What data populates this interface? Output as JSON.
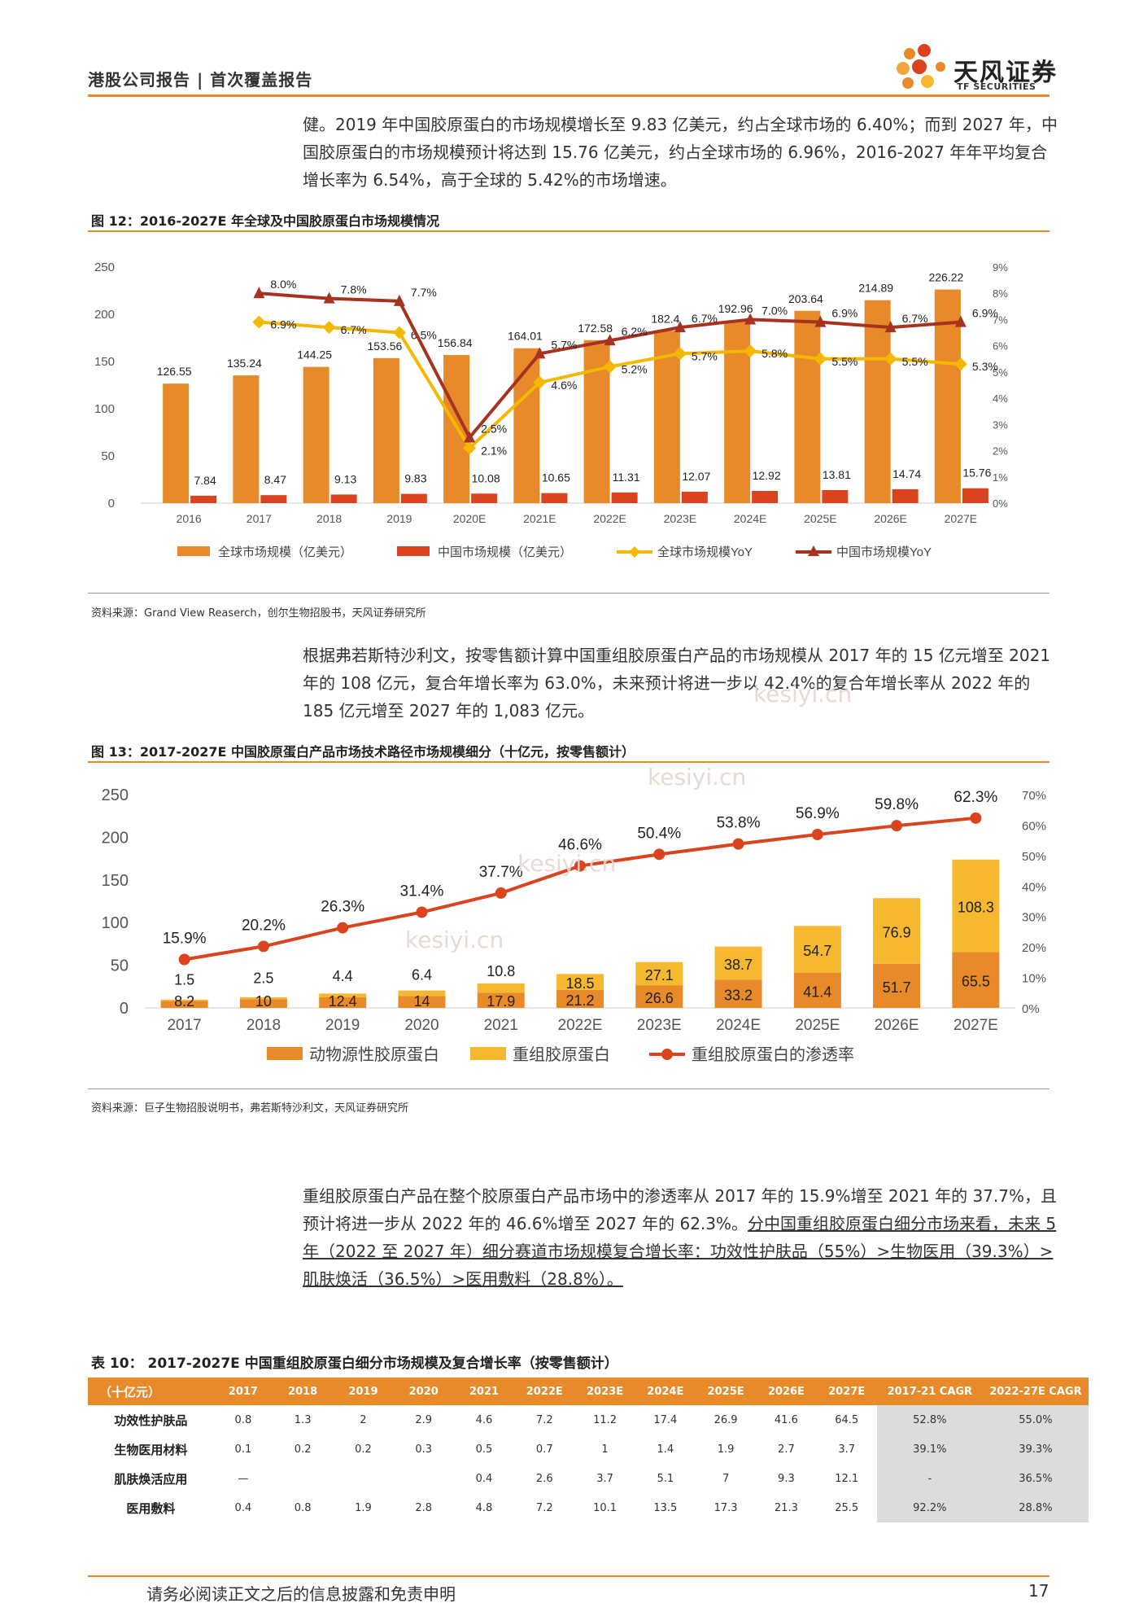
{
  "header": {
    "left": "港股公司报告 | 首次覆盖报告",
    "logo_cn": "天风证券",
    "logo_en": "TF SECURITIES"
  },
  "paragraphs": {
    "p1": "健。2019 年中国胶原蛋白的市场规模增长至 9.83 亿美元，约占全球市场的 6.40%；而到 2027 年，中国胶原蛋白的市场规模预计将达到 15.76 亿美元，约占全球市场的 6.96%，2016-2027 年年平均复合增长率为 6.54%，高于全球的 5.42%的市场增速。",
    "p2": "根据弗若斯特沙利文，按零售额计算中国重组胶原蛋白产品的市场规模从 2017 年的 15 亿元增至 2021 年的 108 亿元，复合年增长率为 63.0%，未来预计将进一步以 42.4%的复合年增长率从 2022 年的 185 亿元增至 2027 年的 1,083 亿元。",
    "p3_a": "重组胶原蛋白产品在整个胶原蛋白产品市场中的渗透率从 2017 年的 15.9%增至 2021 年的 37.7%，且预计将进一步从 2022 年的 46.6%增至 2027 年的 62.3%。",
    "p3_b": "分中国重组胶原蛋白细分市场来看，未来 5 年（2022 至 2027 年）细分赛道市场规模复合增长率：功效性护肤品（55%）>生物医用（39.3%）>肌肤焕活（36.5%）>医用敷料（28.8%）。"
  },
  "fig12": {
    "title": "图 12：2016-2027E 年全球及中国胶原蛋白市场规模情况",
    "source": "资料来源：Grand View Reaserch，创尔生物招股书，天风证券研究所"
  },
  "fig13": {
    "title": "图 13：2017-2027E 中国胶原蛋白产品市场技术路径市场规模细分（十亿元，按零售额计）",
    "source": "资料来源：巨子生物招股说明书，弗若斯特沙利文，天风证券研究所"
  },
  "watermark": [
    "kesiyi.cn",
    "kesiyi.cn",
    "kesiyi.cn",
    "kesiyi.cn"
  ],
  "table10": {
    "title": "表 10：   2017-2027E 中国重组胶原蛋白细分市场规模及复合增长率（按零售额计）",
    "headers": [
      "（十亿元）",
      "2017",
      "2018",
      "2019",
      "2020",
      "2021",
      "2022E",
      "2023E",
      "2024E",
      "2025E",
      "2026E",
      "2027E",
      "2017-21 CAGR",
      "2022-27E CAGR"
    ],
    "rows": [
      [
        "功效性护肤品",
        "0.8",
        "1.3",
        "2",
        "2.9",
        "4.6",
        "7.2",
        "11.2",
        "17.4",
        "26.9",
        "41.6",
        "64.5",
        "52.8%",
        "55.0%"
      ],
      [
        "生物医用材料",
        "0.1",
        "0.2",
        "0.2",
        "0.3",
        "0.5",
        "0.7",
        "1",
        "1.4",
        "1.9",
        "2.7",
        "3.7",
        "39.1%",
        "39.3%"
      ],
      [
        "肌肤焕活应用",
        "—",
        "",
        "",
        "",
        "0.4",
        "2.6",
        "3.7",
        "5.1",
        "7",
        "9.3",
        "12.1",
        "-",
        "36.5%"
      ],
      [
        "医用敷料",
        "0.4",
        "0.8",
        "1.9",
        "2.8",
        "4.8",
        "7.2",
        "10.1",
        "13.5",
        "17.3",
        "21.3",
        "25.5",
        "92.2%",
        "28.8%"
      ]
    ]
  },
  "footer": {
    "text": "请务必阅读正文之后的信息披露和免责申明",
    "page": "17"
  },
  "chart_data": [
    {
      "type": "bar",
      "title": "图 12：2016-2027E 年全球及中国胶原蛋白市场规模情况",
      "categories": [
        "2016",
        "2017",
        "2018",
        "2019",
        "2020E",
        "2021E",
        "2022E",
        "2023E",
        "2024E",
        "2025E",
        "2026E",
        "2027E"
      ],
      "ylim": [
        0,
        250
      ],
      "ylim_right": [
        0,
        9
      ],
      "y_ticks": [
        "0",
        "50",
        "100",
        "150",
        "200",
        "250"
      ],
      "y2_ticks": [
        "0%",
        "1%",
        "2%",
        "3%",
        "4%",
        "5%",
        "6%",
        "7%",
        "8%",
        "9%"
      ],
      "series": [
        {
          "name": "全球市场规模（亿美元）",
          "kind": "bar",
          "color": "#e8892a",
          "values": [
            126.55,
            135.24,
            144.25,
            153.56,
            156.84,
            164.01,
            172.58,
            182.4,
            192.96,
            203.64,
            214.89,
            226.22
          ],
          "labels": [
            "126.55",
            "135.24",
            "144.25",
            "153.56",
            "156.84",
            "164.01",
            "172.58",
            "182.4",
            "192.96",
            "203.64",
            "214.89",
            "226.22"
          ]
        },
        {
          "name": "中国市场规模（亿美元）",
          "kind": "bar",
          "color": "#d9431e",
          "values": [
            7.84,
            8.47,
            9.13,
            9.83,
            10.08,
            10.65,
            11.31,
            12.07,
            12.92,
            13.81,
            14.74,
            15.76
          ],
          "labels": [
            "7.84",
            "8.47",
            "9.13",
            "9.83",
            "10.08",
            "10.65",
            "11.31",
            "12.07",
            "12.92",
            "13.81",
            "14.74",
            "15.76"
          ]
        },
        {
          "name": "全球市场规模YoY",
          "kind": "line",
          "axis": "right",
          "color": "#f5b800",
          "marker": "diamond",
          "values": [
            null,
            6.9,
            6.7,
            6.5,
            2.1,
            4.6,
            5.2,
            5.7,
            5.8,
            5.5,
            5.5,
            5.3
          ],
          "labels": [
            "",
            "6.9%",
            "6.7%",
            "6.5%",
            "2.1%",
            "4.6%",
            "5.2%",
            "5.7%",
            "5.8%",
            "5.5%",
            "5.5%",
            "5.3%"
          ]
        },
        {
          "name": "中国市场规模YoY",
          "kind": "line",
          "axis": "right",
          "color": "#a83220",
          "marker": "triangle",
          "values": [
            null,
            8.0,
            7.8,
            7.7,
            2.5,
            5.7,
            6.2,
            6.7,
            7.0,
            6.9,
            6.7,
            6.9
          ],
          "labels": [
            "",
            "8.0%",
            "7.8%",
            "7.7%",
            "2.5%",
            "5.7%",
            "6.2%",
            "6.7%",
            "7.0%",
            "6.9%",
            "6.7%",
            "6.9%"
          ]
        }
      ]
    },
    {
      "type": "bar",
      "title": "图 13：2017-2027E 中国胶原蛋白产品市场技术路径市场规模细分（十亿元，按零售额计）",
      "categories": [
        "2017",
        "2018",
        "2019",
        "2020",
        "2021",
        "2022E",
        "2023E",
        "2024E",
        "2025E",
        "2026E",
        "2027E"
      ],
      "stacked": true,
      "ylim": [
        0,
        250
      ],
      "ylim_right": [
        0,
        70
      ],
      "y_ticks": [
        "0",
        "50",
        "100",
        "150",
        "200",
        "250"
      ],
      "y2_ticks": [
        "0%",
        "10%",
        "20%",
        "30%",
        "40%",
        "50%",
        "60%",
        "70%"
      ],
      "series": [
        {
          "name": "动物源性胶原蛋白",
          "kind": "bar",
          "color": "#e8892a",
          "values": [
            8.2,
            10,
            12.4,
            14,
            17.9,
            21.2,
            26.6,
            33.2,
            41.4,
            51.7,
            65.5
          ],
          "labels": [
            "8.2",
            "10",
            "12.4",
            "14",
            "17.9",
            "21.2",
            "26.6",
            "33.2",
            "41.4",
            "51.7",
            "65.5"
          ]
        },
        {
          "name": "重组胶原蛋白",
          "kind": "bar",
          "color": "#f5b82e",
          "values": [
            1.5,
            2.5,
            4.4,
            6.4,
            10.8,
            18.5,
            27.1,
            38.7,
            54.7,
            76.9,
            108.3
          ],
          "labels": [
            "1.5",
            "2.5",
            "4.4",
            "6.4",
            "10.8",
            "18.5",
            "27.1",
            "38.7",
            "54.7",
            "76.9",
            "108.3"
          ]
        },
        {
          "name": "重组胶原蛋白的渗透率",
          "kind": "line",
          "axis": "right",
          "color": "#d9431e",
          "marker": "circle",
          "values": [
            15.9,
            20.2,
            26.3,
            31.4,
            37.7,
            46.6,
            50.4,
            53.8,
            56.9,
            59.8,
            62.3
          ],
          "labels": [
            "15.9%",
            "20.2%",
            "26.3%",
            "31.4%",
            "37.7%",
            "46.6%",
            "50.4%",
            "53.8%",
            "56.9%",
            "59.8%",
            "62.3%"
          ]
        }
      ]
    }
  ]
}
